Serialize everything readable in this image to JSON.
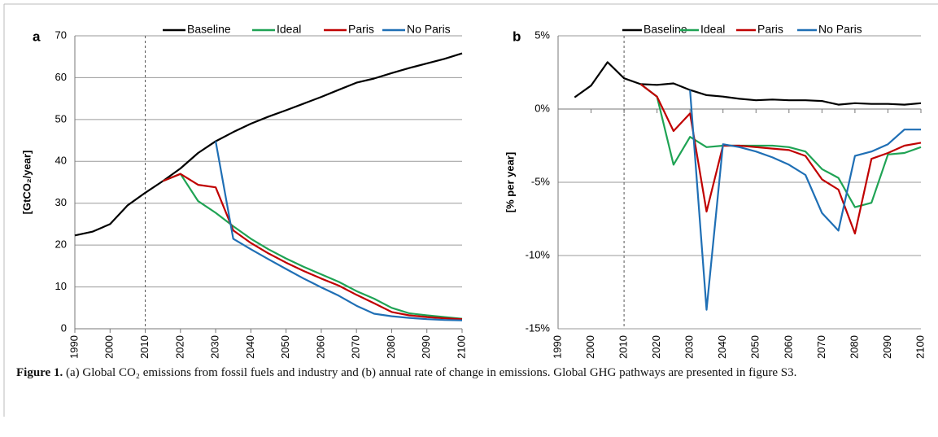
{
  "chart_data": [
    {
      "type": "line",
      "panel": "a",
      "ylabel": "[GtCO₂/year]",
      "x": [
        1990,
        1995,
        2000,
        2005,
        2010,
        2015,
        2020,
        2025,
        2030,
        2035,
        2040,
        2045,
        2050,
        2055,
        2060,
        2065,
        2070,
        2075,
        2080,
        2085,
        2090,
        2095,
        2100
      ],
      "xlim": [
        1990,
        2100
      ],
      "xticks": [
        1990,
        2000,
        2010,
        2020,
        2030,
        2040,
        2050,
        2060,
        2070,
        2080,
        2090,
        2100
      ],
      "ylim": [
        0,
        70
      ],
      "yticks": [
        0,
        10,
        20,
        30,
        40,
        50,
        60,
        70
      ],
      "grid": true,
      "vline": 2010,
      "series": [
        {
          "name": "Baseline",
          "color": "#000000",
          "values": [
            22.3,
            23.2,
            25,
            29.5,
            32.5,
            35.3,
            38.3,
            42,
            44.8,
            47,
            49,
            50.7,
            52.2,
            53.8,
            55.4,
            57.1,
            58.8,
            59.8,
            61.1,
            62.3,
            63.4,
            64.5,
            65.8
          ]
        },
        {
          "name": "Ideal",
          "color": "#1fa354",
          "values": [
            null,
            null,
            null,
            null,
            null,
            35.3,
            37,
            30.5,
            27.7,
            24.5,
            21.5,
            19,
            16.8,
            14.8,
            13,
            11.2,
            9,
            7.2,
            5,
            3.7,
            3.2,
            2.8,
            2.4
          ]
        },
        {
          "name": "Paris",
          "color": "#c00000",
          "values": [
            null,
            null,
            null,
            null,
            null,
            35.3,
            37,
            34.4,
            33.8,
            23.5,
            20.5,
            18,
            15.8,
            13.8,
            12,
            10.3,
            8.1,
            6.1,
            4,
            3.2,
            2.8,
            2.5,
            2.3
          ]
        },
        {
          "name": "No Paris",
          "color": "#1f6fb5",
          "values": [
            null,
            null,
            null,
            null,
            null,
            null,
            null,
            null,
            44.8,
            21.5,
            19,
            16.6,
            14.3,
            12,
            9.9,
            7.9,
            5.5,
            3.6,
            3,
            2.6,
            2.3,
            2.1,
            2.0
          ]
        }
      ]
    },
    {
      "type": "line",
      "panel": "b",
      "ylabel": "[% per year]",
      "x": [
        1995,
        2000,
        2005,
        2010,
        2015,
        2020,
        2025,
        2030,
        2035,
        2040,
        2045,
        2050,
        2055,
        2060,
        2065,
        2070,
        2075,
        2080,
        2085,
        2090,
        2095,
        2100
      ],
      "xlim": [
        1990,
        2100
      ],
      "xticks": [
        1990,
        2000,
        2010,
        2020,
        2030,
        2040,
        2050,
        2060,
        2070,
        2080,
        2090,
        2100
      ],
      "ylim": [
        -15,
        5
      ],
      "yticks": [
        {
          "value": -15,
          "label": "-15%"
        },
        {
          "value": -10,
          "label": "-10%"
        },
        {
          "value": -5,
          "label": "-5%"
        },
        {
          "value": 0,
          "label": "0%"
        },
        {
          "value": 5,
          "label": "5%"
        }
      ],
      "grid": true,
      "vline": 2010,
      "series": [
        {
          "name": "Baseline",
          "color": "#000000",
          "values": [
            0.8,
            1.6,
            3.2,
            2.1,
            1.7,
            1.65,
            1.75,
            1.3,
            0.95,
            0.85,
            0.7,
            0.6,
            0.65,
            0.6,
            0.6,
            0.55,
            0.3,
            0.4,
            0.35,
            0.35,
            0.3,
            0.4
          ]
        },
        {
          "name": "Ideal",
          "color": "#1fa354",
          "values": [
            null,
            null,
            null,
            null,
            1.7,
            0.85,
            -3.8,
            -1.9,
            -2.6,
            -2.5,
            -2.5,
            -2.5,
            -2.5,
            -2.6,
            -2.9,
            -4.1,
            -4.7,
            -6.7,
            -6.4,
            -3.1,
            -3.0,
            -2.6
          ]
        },
        {
          "name": "Paris",
          "color": "#c00000",
          "values": [
            null,
            null,
            null,
            null,
            1.7,
            0.85,
            -1.5,
            -0.3,
            -7.0,
            -2.5,
            -2.5,
            -2.6,
            -2.7,
            -2.8,
            -3.2,
            -4.8,
            -5.5,
            -8.5,
            -3.4,
            -3.0,
            -2.5,
            -2.3
          ]
        },
        {
          "name": "No Paris",
          "color": "#1f6fb5",
          "values": [
            null,
            null,
            null,
            null,
            null,
            null,
            null,
            1.3,
            -13.7,
            -2.4,
            -2.6,
            -2.9,
            -3.3,
            -3.8,
            -4.5,
            -7.1,
            -8.3,
            -3.2,
            -2.9,
            -2.4,
            -1.4,
            -1.4
          ]
        }
      ]
    }
  ],
  "caption": {
    "label": "Figure 1.",
    "text": "(a) Global CO₂ emissions from fossil fuels and industry and (b) annual rate of change in emissions. Global GHG pathways are presented in figure S3."
  }
}
